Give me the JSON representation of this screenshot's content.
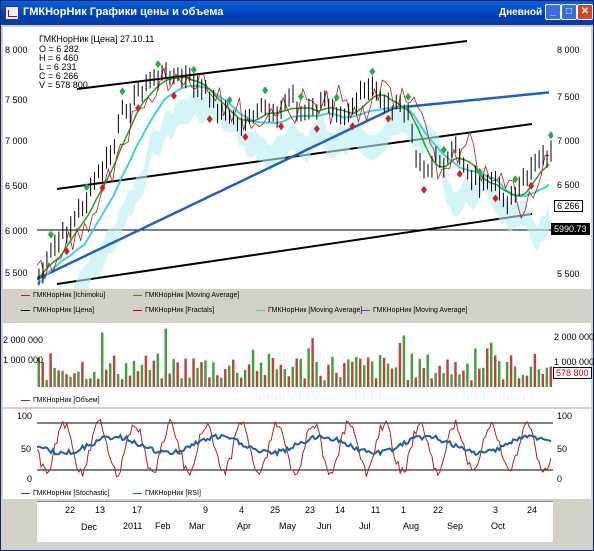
{
  "window": {
    "title": "ГМКНорНик Графики цены и объема",
    "period": "Дневной",
    "minimize_glyph": "_",
    "maximize_glyph": "□",
    "close_glyph": "✕"
  },
  "info": {
    "header": "ГМКНорНик [Цена] 27.10.11",
    "o": "O = 6 282",
    "h": "H = 6 460",
    "l": "L = 6 231",
    "c": "C = 6 266",
    "v": "V = 578 800"
  },
  "price_axis": [
    "8 000",
    "7 500",
    "7 000",
    "6 500",
    "6 000",
    "5 500"
  ],
  "price_current": "6 266",
  "price_level": "5990.73",
  "legend_price": [
    {
      "text": "ГМКНорНик [Ichimoku]",
      "color": "#b02020"
    },
    {
      "text": "ГМКНорНик [Moving Average]",
      "color": "#20a020"
    },
    {
      "text": "ГМКНорНик [Цена]",
      "color": "#000000"
    },
    {
      "text": "ГМКНорНик [Fractals]",
      "color": "#d00000"
    },
    {
      "text": "ГМКНорНик [Moving Average]",
      "color": "#40d0e0"
    },
    {
      "text": "ГМКНорНик [Moving Average]",
      "color": "#2060c0"
    }
  ],
  "volume_axis_left": [
    "2 000 000",
    "1 000 000"
  ],
  "volume_axis_right": [
    "2 000 000",
    "1 000 000"
  ],
  "volume_current": "578 800",
  "legend_volume": [
    {
      "text": "ГМКНорНик [Объем]",
      "color": "#b02020"
    }
  ],
  "osc_axis": [
    "100",
    "50",
    "0"
  ],
  "legend_osc": [
    {
      "text": "ГМКНорНик [Stochastic]",
      "color": "#b02020"
    },
    {
      "text": "ГМКНорНик [RSI]",
      "color": "#2060a0"
    }
  ],
  "x_days": [
    "22",
    "13",
    "17",
    "9",
    "4",
    "25",
    "23",
    "14",
    "11",
    "1",
    "22",
    "3",
    "24"
  ],
  "x_months": [
    "Dec",
    "2011",
    "Feb",
    "Mar",
    "Apr",
    "May",
    "Jun",
    "Jul",
    "Aug",
    "Sep",
    "Oct"
  ],
  "colors": {
    "title": "#0040b8",
    "up": "#30a030",
    "down": "#c02020"
  }
}
